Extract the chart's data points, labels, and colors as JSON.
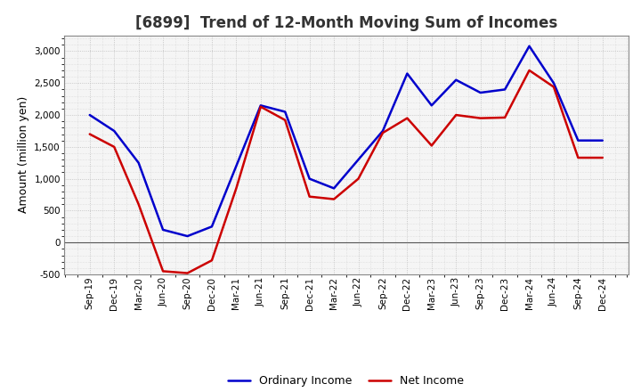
{
  "title": "[6899]  Trend of 12-Month Moving Sum of Incomes",
  "ylabel": "Amount (million yen)",
  "ylim": [
    -500,
    3250
  ],
  "yticks": [
    -500,
    0,
    500,
    1000,
    1500,
    2000,
    2500,
    3000
  ],
  "x_labels": [
    "Sep-19",
    "Dec-19",
    "Mar-20",
    "Jun-20",
    "Sep-20",
    "Dec-20",
    "Mar-21",
    "Jun-21",
    "Sep-21",
    "Dec-21",
    "Mar-22",
    "Jun-22",
    "Sep-22",
    "Dec-22",
    "Mar-23",
    "Jun-23",
    "Sep-23",
    "Dec-23",
    "Mar-24",
    "Jun-24",
    "Sep-24",
    "Dec-24"
  ],
  "ordinary_income": [
    2000,
    1750,
    1250,
    200,
    100,
    250,
    1200,
    2150,
    2050,
    1000,
    850,
    1300,
    1750,
    2650,
    2150,
    2550,
    2350,
    2400,
    3080,
    2500,
    1600,
    1600
  ],
  "net_income": [
    1700,
    1500,
    600,
    -450,
    -480,
    -280,
    850,
    2130,
    1920,
    720,
    680,
    1000,
    1720,
    1950,
    1520,
    2000,
    1950,
    1960,
    2700,
    2440,
    1330,
    1330
  ],
  "ordinary_color": "#0000CC",
  "net_color": "#CC0000",
  "line_width": 1.8,
  "background_color": "#FFFFFF",
  "plot_bg_color": "#F5F5F5",
  "grid_color": "#BBBBBB",
  "title_fontsize": 12,
  "ylabel_fontsize": 9,
  "legend_fontsize": 9,
  "tick_fontsize": 7.5
}
